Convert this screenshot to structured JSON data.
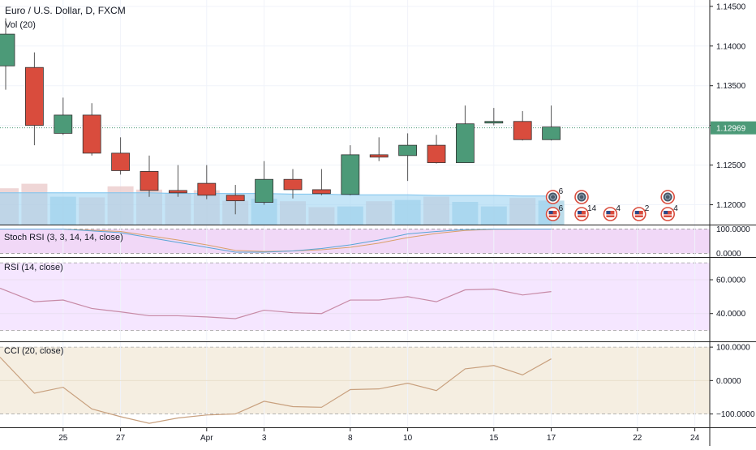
{
  "header": {
    "symbol_title": "Euro / U.S. Dollar, D, FXCM",
    "volume_label": "Vol (20)"
  },
  "colors": {
    "up": "#4c9a78",
    "down": "#d94c3d",
    "volume_up": "#a6d0e3",
    "volume_down": "#e9c8c8",
    "volume_ma": "#9fd3f2",
    "stoch_band": "#e6b8f0",
    "rsi_band": "#f1dcff",
    "cci_band": "#f3ebdc",
    "rsi_line": "#c78aa6",
    "cci_line": "#c8a07e",
    "stoch_k": "#59a6d6",
    "stoch_d": "#d9a06a",
    "price_badge": "#4c9a78"
  },
  "chart_data": [
    {
      "type": "candlestick",
      "title": "Euro / U.S. Dollar, D, FXCM",
      "x_ticks": [
        {
          "i": 2,
          "label": "25"
        },
        {
          "i": 4,
          "label": "27"
        },
        {
          "i": 7,
          "label": "Apr"
        },
        {
          "i": 9,
          "label": "3"
        },
        {
          "i": 12,
          "label": "8"
        },
        {
          "i": 14,
          "label": "10"
        },
        {
          "i": 17,
          "label": "15"
        },
        {
          "i": 19,
          "label": "17"
        },
        {
          "i": 22,
          "label": "22"
        },
        {
          "i": 24,
          "label": "24"
        }
      ],
      "y_ticks": [
        1.12,
        1.125,
        1.13,
        1.135,
        1.14,
        1.145
      ],
      "y_tick_labels": [
        "1.12000",
        "1.12500",
        "1.13000",
        "1.13500",
        "1.14000",
        "1.14500"
      ],
      "ylim": [
        1.1175,
        1.1458
      ],
      "last_price": 1.12969,
      "last_price_label": "1.12969",
      "candles": [
        {
          "i": 0,
          "o": 1.1375,
          "h": 1.1435,
          "l": 1.1345,
          "c": 1.1415
        },
        {
          "i": 1,
          "o": 1.1373,
          "h": 1.1392,
          "l": 1.1275,
          "c": 1.13
        },
        {
          "i": 2,
          "o": 1.129,
          "h": 1.1335,
          "l": 1.1288,
          "c": 1.1313
        },
        {
          "i": 3,
          "o": 1.1313,
          "h": 1.1328,
          "l": 1.1262,
          "c": 1.1265
        },
        {
          "i": 4,
          "o": 1.1265,
          "h": 1.1285,
          "l": 1.1238,
          "c": 1.1243
        },
        {
          "i": 5,
          "o": 1.1242,
          "h": 1.1262,
          "l": 1.121,
          "c": 1.1218
        },
        {
          "i": 6,
          "o": 1.1218,
          "h": 1.125,
          "l": 1.121,
          "c": 1.1215
        },
        {
          "i": 7,
          "o": 1.1227,
          "h": 1.125,
          "l": 1.1207,
          "c": 1.1212
        },
        {
          "i": 8,
          "o": 1.1212,
          "h": 1.1225,
          "l": 1.1188,
          "c": 1.1205
        },
        {
          "i": 9,
          "o": 1.1203,
          "h": 1.1255,
          "l": 1.12,
          "c": 1.1232
        },
        {
          "i": 10,
          "o": 1.1232,
          "h": 1.1245,
          "l": 1.1208,
          "c": 1.1219
        },
        {
          "i": 11,
          "o": 1.1219,
          "h": 1.1245,
          "l": 1.1212,
          "c": 1.1214
        },
        {
          "i": 12,
          "o": 1.1213,
          "h": 1.1275,
          "l": 1.1212,
          "c": 1.1263
        },
        {
          "i": 13,
          "o": 1.1263,
          "h": 1.1285,
          "l": 1.1255,
          "c": 1.126
        },
        {
          "i": 14,
          "o": 1.1262,
          "h": 1.129,
          "l": 1.123,
          "c": 1.1275
        },
        {
          "i": 15,
          "o": 1.1275,
          "h": 1.1288,
          "l": 1.1252,
          "c": 1.1253
        },
        {
          "i": 16,
          "o": 1.1253,
          "h": 1.1325,
          "l": 1.1253,
          "c": 1.1302
        },
        {
          "i": 17,
          "o": 1.1305,
          "h": 1.1322,
          "l": 1.13,
          "c": 1.1305
        },
        {
          "i": 18,
          "o": 1.1305,
          "h": 1.1318,
          "l": 1.1281,
          "c": 1.1282
        },
        {
          "i": 19,
          "o": 1.1282,
          "h": 1.1325,
          "l": 1.1281,
          "c": 1.1298
        }
      ],
      "volume": [
        {
          "i": 0,
          "v": 0.56,
          "up": false
        },
        {
          "i": 1,
          "v": 0.63,
          "up": false
        },
        {
          "i": 2,
          "v": 0.43,
          "up": true
        },
        {
          "i": 3,
          "v": 0.42,
          "up": false
        },
        {
          "i": 4,
          "v": 0.59,
          "up": false
        },
        {
          "i": 5,
          "v": 0.54,
          "up": false
        },
        {
          "i": 6,
          "v": 0.49,
          "up": false
        },
        {
          "i": 7,
          "v": 0.53,
          "up": false
        },
        {
          "i": 8,
          "v": 0.37,
          "up": false
        },
        {
          "i": 9,
          "v": 0.4,
          "up": true
        },
        {
          "i": 10,
          "v": 0.36,
          "up": false
        },
        {
          "i": 11,
          "v": 0.27,
          "up": false
        },
        {
          "i": 12,
          "v": 0.28,
          "up": true
        },
        {
          "i": 13,
          "v": 0.36,
          "up": false
        },
        {
          "i": 14,
          "v": 0.38,
          "up": true
        },
        {
          "i": 15,
          "v": 0.43,
          "up": false
        },
        {
          "i": 16,
          "v": 0.35,
          "up": true
        },
        {
          "i": 17,
          "v": 0.28,
          "up": true
        },
        {
          "i": 18,
          "v": 0.41,
          "up": false
        },
        {
          "i": 19,
          "v": 0.37,
          "up": true
        }
      ],
      "volume_ma": [
        0.49,
        0.49,
        0.49,
        0.49,
        0.49,
        0.49,
        0.48,
        0.48,
        0.48,
        0.48,
        0.47,
        0.47,
        0.46,
        0.46,
        0.46,
        0.45,
        0.45,
        0.45,
        0.44,
        0.44
      ],
      "events": [
        {
          "i": 19,
          "row": 1,
          "count": "6",
          "kind": "earth"
        },
        {
          "i": 19,
          "row": 2,
          "count": "6",
          "kind": "flag"
        },
        {
          "i": 20,
          "row": 1,
          "count": "",
          "kind": "earth"
        },
        {
          "i": 20,
          "row": 2,
          "count": "14",
          "kind": "flag"
        },
        {
          "i": 21,
          "row": 2,
          "count": "4",
          "kind": "flag"
        },
        {
          "i": 22,
          "row": 2,
          "count": "2",
          "kind": "flag"
        },
        {
          "i": 23,
          "row": 1,
          "count": "",
          "kind": "earth"
        },
        {
          "i": 23,
          "row": 2,
          "count": "4",
          "kind": "flag"
        }
      ]
    },
    {
      "type": "line",
      "title": "Stoch RSI (3, 3, 14, 14, close)",
      "ylim": [
        0,
        100
      ],
      "y_tick_labels": [
        "100.0000",
        "0.0000"
      ],
      "band": [
        0,
        100
      ],
      "series": [
        {
          "name": "K",
          "x": [
            0,
            2,
            4,
            6,
            7,
            8,
            9,
            10,
            11,
            12,
            13,
            14,
            15,
            16,
            17,
            18,
            19
          ],
          "values": [
            100,
            100,
            85,
            45,
            25,
            5,
            5,
            10,
            20,
            35,
            55,
            80,
            90,
            98,
            100,
            100,
            100
          ]
        },
        {
          "name": "D",
          "x": [
            0,
            2,
            4,
            6,
            7,
            8,
            9,
            10,
            11,
            12,
            13,
            14,
            15,
            16,
            17,
            18,
            19
          ],
          "values": [
            100,
            100,
            90,
            55,
            35,
            12,
            8,
            10,
            15,
            25,
            42,
            65,
            82,
            94,
            99,
            100,
            100
          ]
        }
      ]
    },
    {
      "type": "line",
      "title": "RSI (14, close)",
      "ylim": [
        25,
        72
      ],
      "y_ticks": [
        60,
        40
      ],
      "y_tick_labels": [
        "60.0000",
        "40.0000"
      ],
      "band": [
        30,
        70
      ],
      "series": [
        {
          "name": "RSI",
          "x": [
            0,
            1,
            2,
            3,
            4,
            5,
            6,
            7,
            8,
            9,
            10,
            11,
            12,
            13,
            14,
            15,
            16,
            17,
            18,
            19
          ],
          "values": [
            55,
            47,
            48,
            43,
            41,
            38.7,
            38.7,
            38,
            37,
            42,
            40.5,
            40,
            48,
            48,
            50,
            47,
            54,
            54.5,
            51,
            53
          ]
        }
      ]
    },
    {
      "type": "line",
      "title": "CCI (20, close)",
      "ylim": [
        -135,
        110
      ],
      "y_ticks": [
        100,
        0,
        -100
      ],
      "y_tick_labels": [
        "100.0000",
        "0.0000",
        "−100.0000"
      ],
      "band": [
        -100,
        100
      ],
      "series": [
        {
          "name": "CCI",
          "x": [
            0,
            1,
            2,
            3,
            4,
            5,
            6,
            7,
            8,
            9,
            10,
            11,
            12,
            13,
            14,
            15,
            16,
            17,
            18,
            19
          ],
          "values": [
            70,
            -38,
            -20,
            -85,
            -108,
            -128,
            -112,
            -103,
            -100,
            -62,
            -78,
            -80,
            -27,
            -25,
            -8,
            -30,
            35,
            45,
            17,
            65
          ]
        }
      ]
    }
  ]
}
